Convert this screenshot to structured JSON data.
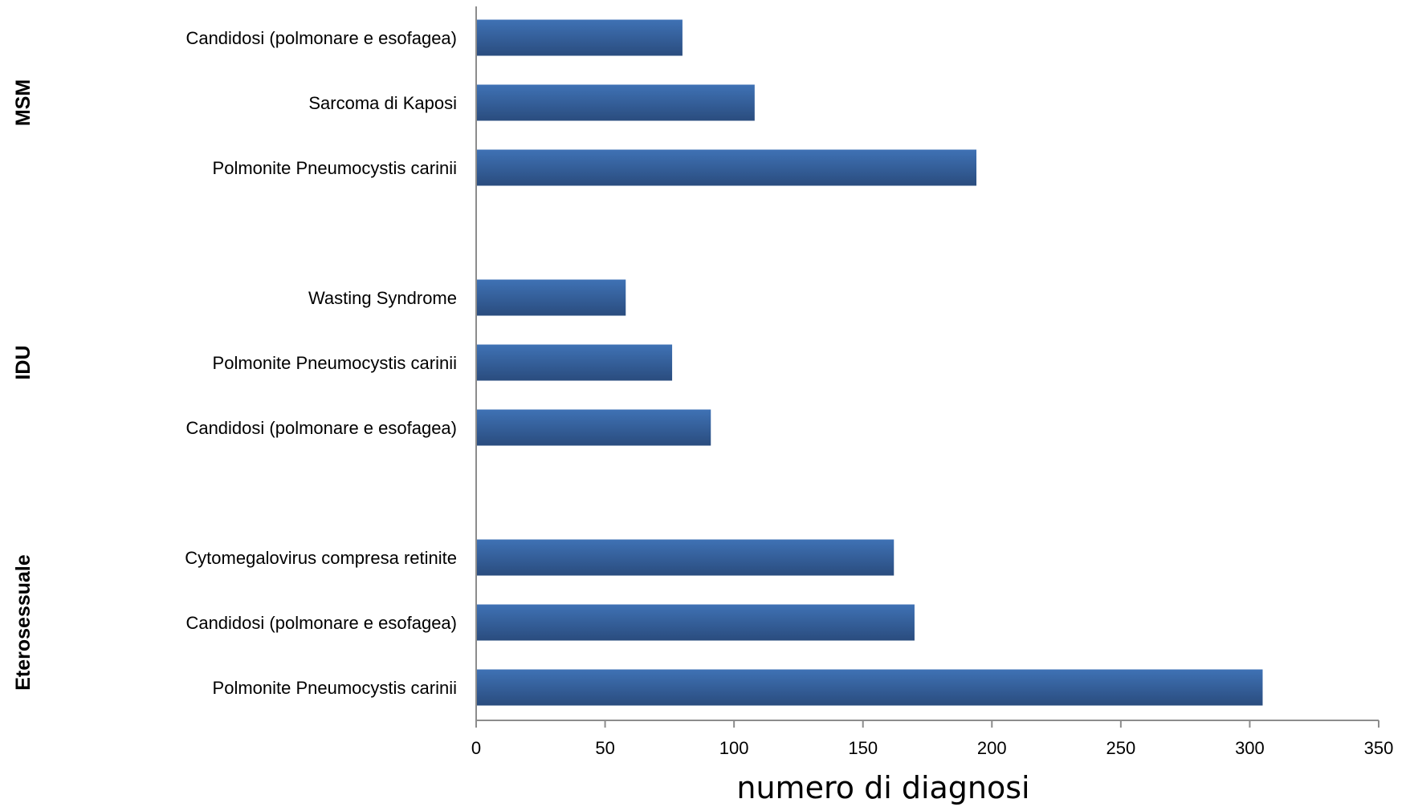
{
  "chart_data": {
    "type": "bar",
    "orientation": "horizontal",
    "xlabel": "numero di diagnosi",
    "ylabel": "",
    "xlim": [
      0,
      350
    ],
    "x_ticks": [
      "0",
      "50",
      "100",
      "150",
      "200",
      "250",
      "300",
      "350"
    ],
    "grid": false,
    "legend": "none",
    "bar_color": "#3f72b5",
    "bar_color_dark": "#2a4c7e",
    "groups": [
      {
        "name": "MSM",
        "bars": [
          {
            "label": "Candidosi (polmonare e esofagea)",
            "value": 80
          },
          {
            "label": "Sarcoma di Kaposi",
            "value": 108
          },
          {
            "label": "Polmonite Pneumocystis carinii",
            "value": 194
          }
        ]
      },
      {
        "name": "IDU",
        "bars": [
          {
            "label": "Wasting Syndrome",
            "value": 58
          },
          {
            "label": "Polmonite Pneumocystis carinii",
            "value": 76
          },
          {
            "label": "Candidosi (polmonare e esofagea)",
            "value": 91
          }
        ]
      },
      {
        "name": "Eterosessuale",
        "bars": [
          {
            "label": "Cytomegalovirus compresa retinite",
            "value": 162
          },
          {
            "label": "Candidosi (polmonare e esofagea)",
            "value": 170
          },
          {
            "label": "Polmonite Pneumocystis carinii",
            "value": 305
          }
        ]
      }
    ]
  }
}
